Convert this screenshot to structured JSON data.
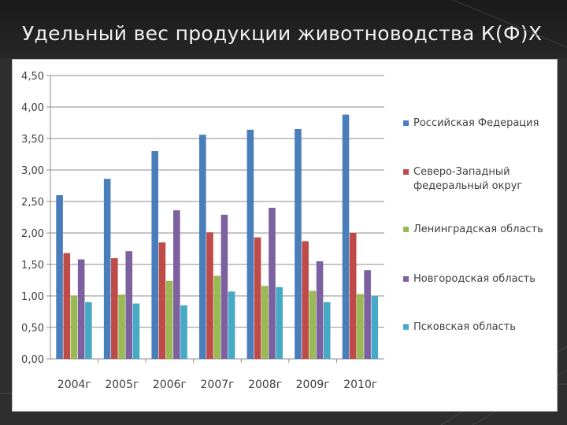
{
  "slide": {
    "title": "Удельный вес продукции животноводства К(Ф)Х"
  },
  "chart_data": {
    "type": "bar",
    "title": "",
    "xlabel": "",
    "ylabel": "",
    "ylim": [
      0,
      4.5
    ],
    "yticks": [
      "0,00",
      "0,50",
      "1,00",
      "1,50",
      "2,00",
      "2,50",
      "3,00",
      "3,50",
      "4,00",
      "4,50"
    ],
    "grid": true,
    "legend_position": "right",
    "categories": [
      "2004г",
      "2005г",
      "2006г",
      "2007г",
      "2008г",
      "2009г",
      "2010г"
    ],
    "series": [
      {
        "name": "Российская Федерация",
        "color": "#4a7ebb",
        "values": [
          2.6,
          2.86,
          3.3,
          3.56,
          3.64,
          3.65,
          3.88
        ]
      },
      {
        "name": "Северо-Западный федеральный округ",
        "color": "#be4b48",
        "values": [
          1.68,
          1.6,
          1.85,
          2.01,
          1.93,
          1.87,
          2.0
        ]
      },
      {
        "name": "Ленинградская область",
        "color": "#98b954",
        "values": [
          1.0,
          1.02,
          1.24,
          1.32,
          1.16,
          1.08,
          1.03
        ]
      },
      {
        "name": "Новгородская область",
        "color": "#7d60a0",
        "values": [
          1.58,
          1.71,
          2.36,
          2.29,
          2.4,
          1.55,
          1.41
        ]
      },
      {
        "name": "Псковская область",
        "color": "#46aac5",
        "values": [
          0.9,
          0.88,
          0.85,
          1.07,
          1.14,
          0.9,
          1.0
        ]
      }
    ]
  }
}
